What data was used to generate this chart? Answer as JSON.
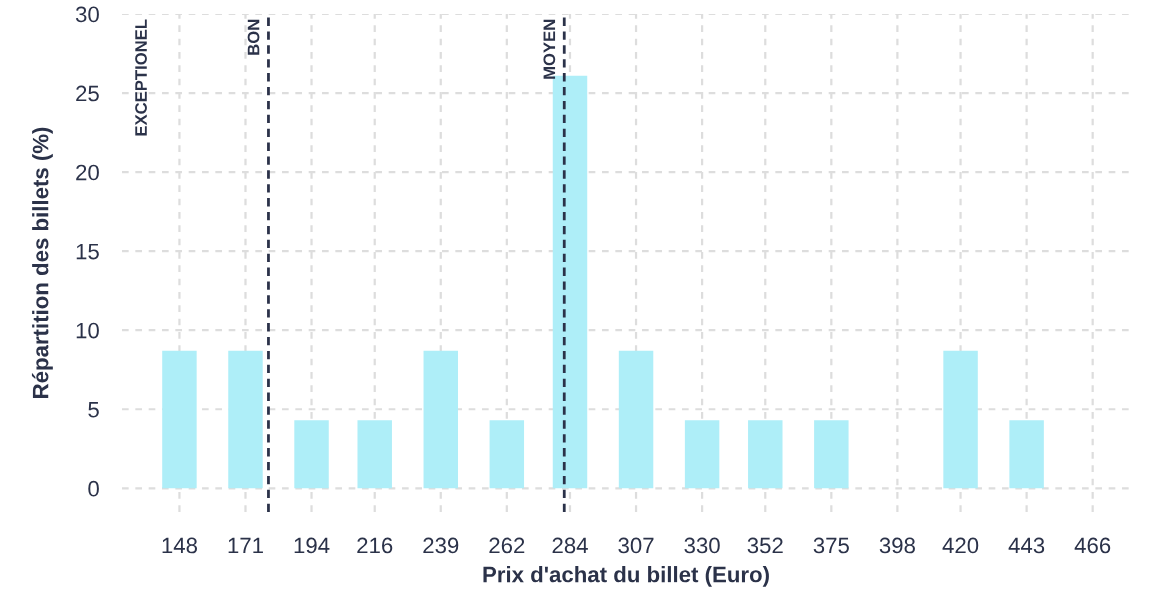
{
  "chart_data": {
    "type": "bar",
    "xlabel": "Prix d'achat du billet (Euro)",
    "ylabel": "Répartition des billets (%)",
    "x": [
      148,
      171,
      194,
      216,
      239,
      262,
      284,
      307,
      330,
      352,
      375,
      398,
      420,
      443,
      466
    ],
    "values": [
      8.7,
      8.7,
      4.3,
      4.3,
      8.7,
      4.3,
      26.1,
      8.7,
      4.3,
      4.3,
      4.3,
      0,
      8.7,
      4.3,
      0
    ],
    "color": "#aeeef8",
    "xlim": [
      128,
      479
    ],
    "xticks": [
      148,
      171,
      194,
      216,
      239,
      262,
      284,
      307,
      330,
      352,
      375,
      398,
      420,
      443,
      466
    ],
    "ylim": [
      -1.5,
      30
    ],
    "yticks": [
      0,
      5,
      10,
      15,
      20,
      25,
      30
    ],
    "grid": true,
    "ref_lines": [
      {
        "axis": "x",
        "value": 179,
        "label": "BON",
        "color": "#2b3249",
        "line_style": "dashed"
      },
      {
        "axis": "x",
        "value": 282,
        "label": "MOYEN",
        "color": "#2b3249",
        "line_style": "dashed"
      }
    ],
    "annotations": [
      "EXCEPTIONEL"
    ]
  }
}
